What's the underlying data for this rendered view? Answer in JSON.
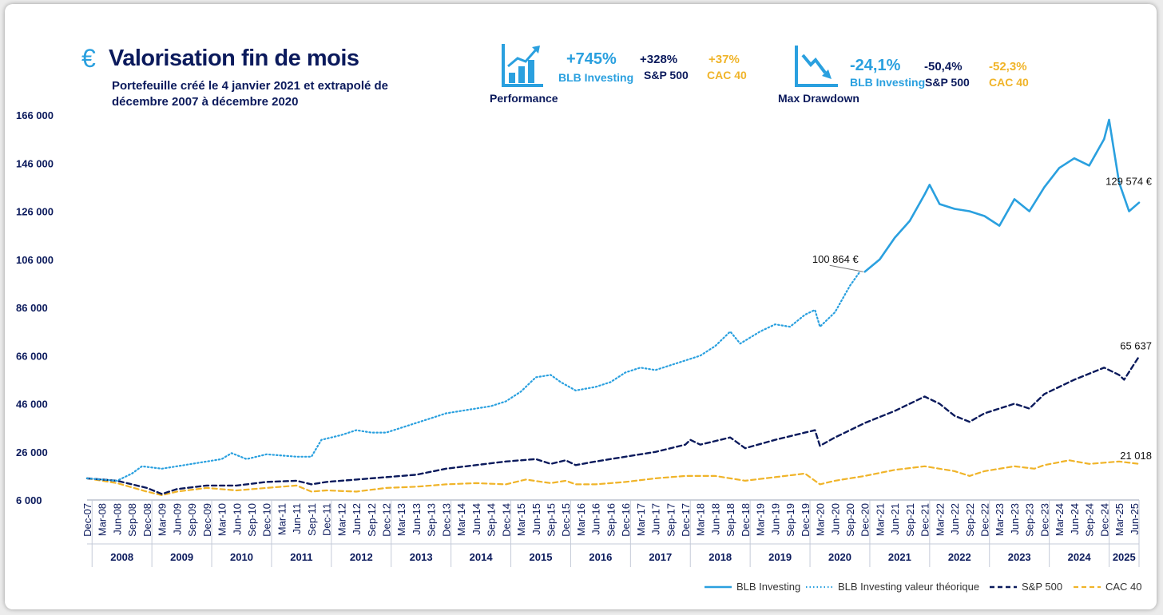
{
  "header": {
    "icon": "euro-icon",
    "title": "Valorisation fin de mois",
    "subtitle": "Portefeuille créé le 4 janvier 2021 et extrapolé de décembre 2007 à décembre 2020"
  },
  "kpis": {
    "performance": {
      "icon": "growth-chart-icon",
      "label": "Performance",
      "blb_value": "+745%",
      "blb_label": "BLB Investing",
      "sp_value": "+328%",
      "sp_label": "S&P 500",
      "cac_value": "+37%",
      "cac_label": "CAC 40"
    },
    "drawdown": {
      "icon": "decline-chart-icon",
      "label": "Max Drawdown",
      "blb_value": "-24,1%",
      "blb_label": "BLB Investing",
      "sp_value": "-50,4%",
      "sp_label": "S&P 500",
      "cac_value": "-52,3%",
      "cac_label": "CAC 40"
    }
  },
  "colors": {
    "blb": "#2aa0df",
    "sp": "#0b1a5c",
    "cac": "#f0b429"
  },
  "chart_data": {
    "type": "line",
    "ylim": [
      6000,
      166000
    ],
    "yticks": [
      "166 000",
      "146 000",
      "126 000",
      "106 000",
      "86 000",
      "66 000",
      "46 000",
      "26 000",
      "6 000"
    ],
    "x_ticks": [
      "Dec-07",
      "Mar-08",
      "Jun-08",
      "Sep-08",
      "Dec-08",
      "Mar-09",
      "Jun-09",
      "Sep-09",
      "Dec-09",
      "Mar-10",
      "Jun-10",
      "Sep-10",
      "Dec-10",
      "Mar-11",
      "Jun-11",
      "Sep-11",
      "Dec-11",
      "Mar-12",
      "Jun-12",
      "Sep-12",
      "Dec-12",
      "Mar-13",
      "Jun-13",
      "Sep-13",
      "Dec-13",
      "Mar-14",
      "Jun-14",
      "Sep-14",
      "Dec-14",
      "Mar-15",
      "Jun-15",
      "Sep-15",
      "Dec-15",
      "Mar-16",
      "Jun-16",
      "Sep-16",
      "Dec-16",
      "Mar-17",
      "Jun-17",
      "Sep-17",
      "Dec-17",
      "Mar-18",
      "Jun-18",
      "Sep-18",
      "Dec-18",
      "Mar-19",
      "Jun-19",
      "Sep-19",
      "Dec-19",
      "Mar-20",
      "Jun-20",
      "Sep-20",
      "Dec-20",
      "Mar-21",
      "Jun-21",
      "Sep-21",
      "Dec-21",
      "Mar-22",
      "Jun-22",
      "Sep-22",
      "Dec-22",
      "Mar-23",
      "Jun-23",
      "Sep-23",
      "Dec-23",
      "Mar-24",
      "Jun-24",
      "Sep-24",
      "Dec-24",
      "Mar-25",
      "Jun-25"
    ],
    "years": [
      "2008",
      "2009",
      "2010",
      "2011",
      "2012",
      "2013",
      "2014",
      "2015",
      "2016",
      "2017",
      "2018",
      "2019",
      "2020",
      "2021",
      "2022",
      "2023",
      "2024",
      "2025"
    ],
    "series": [
      {
        "name": "BLB Investing valeur théorique",
        "style": "dotted",
        "points": [
          [
            "2007-12",
            15000
          ],
          [
            "2008-06",
            14000
          ],
          [
            "2008-09",
            17000
          ],
          [
            "2008-11",
            20000
          ],
          [
            "2009-03",
            19000
          ],
          [
            "2009-06",
            20000
          ],
          [
            "2009-12",
            22000
          ],
          [
            "2010-03",
            23000
          ],
          [
            "2010-05",
            25500
          ],
          [
            "2010-08",
            23000
          ],
          [
            "2010-12",
            25000
          ],
          [
            "2011-06",
            24000
          ],
          [
            "2011-09",
            24000
          ],
          [
            "2011-11",
            31000
          ],
          [
            "2012-03",
            33000
          ],
          [
            "2012-06",
            35000
          ],
          [
            "2012-09",
            34000
          ],
          [
            "2012-12",
            34000
          ],
          [
            "2013-03",
            36000
          ],
          [
            "2013-06",
            38000
          ],
          [
            "2013-09",
            40000
          ],
          [
            "2013-12",
            42000
          ],
          [
            "2014-03",
            43000
          ],
          [
            "2014-09",
            45000
          ],
          [
            "2014-12",
            47000
          ],
          [
            "2015-03",
            51000
          ],
          [
            "2015-06",
            57000
          ],
          [
            "2015-09",
            58000
          ],
          [
            "2015-11",
            55000
          ],
          [
            "2016-02",
            51500
          ],
          [
            "2016-06",
            53000
          ],
          [
            "2016-09",
            55000
          ],
          [
            "2016-12",
            59000
          ],
          [
            "2017-03",
            61000
          ],
          [
            "2017-06",
            60000
          ],
          [
            "2017-09",
            62000
          ],
          [
            "2017-12",
            64000
          ],
          [
            "2018-03",
            66000
          ],
          [
            "2018-06",
            70000
          ],
          [
            "2018-09",
            76000
          ],
          [
            "2018-11",
            71000
          ],
          [
            "2019-03",
            76000
          ],
          [
            "2019-06",
            79000
          ],
          [
            "2019-09",
            78000
          ],
          [
            "2019-12",
            83000
          ],
          [
            "2020-02",
            85000
          ],
          [
            "2020-03",
            78000
          ],
          [
            "2020-06",
            84000
          ],
          [
            "2020-09",
            95000
          ],
          [
            "2020-11",
            100864
          ]
        ]
      },
      {
        "name": "BLB Investing",
        "style": "solid",
        "points": [
          [
            "2020-12",
            100864
          ],
          [
            "2021-03",
            106000
          ],
          [
            "2021-06",
            115000
          ],
          [
            "2021-09",
            122000
          ],
          [
            "2021-12",
            133000
          ],
          [
            "2022-01",
            137000
          ],
          [
            "2022-03",
            129000
          ],
          [
            "2022-06",
            127000
          ],
          [
            "2022-09",
            126000
          ],
          [
            "2022-12",
            124000
          ],
          [
            "2023-03",
            120000
          ],
          [
            "2023-06",
            131000
          ],
          [
            "2023-09",
            126000
          ],
          [
            "2023-12",
            136000
          ],
          [
            "2024-03",
            144000
          ],
          [
            "2024-06",
            148000
          ],
          [
            "2024-09",
            145000
          ],
          [
            "2024-12",
            156000
          ],
          [
            "2025-01",
            164000
          ],
          [
            "2025-03",
            138000
          ],
          [
            "2025-05",
            126000
          ],
          [
            "2025-07",
            129574
          ]
        ]
      },
      {
        "name": "S&P 500",
        "style": "dashed",
        "points": [
          [
            "2007-12",
            15000
          ],
          [
            "2008-06",
            14000
          ],
          [
            "2008-12",
            11000
          ],
          [
            "2009-03",
            8500
          ],
          [
            "2009-06",
            10500
          ],
          [
            "2009-12",
            12000
          ],
          [
            "2010-06",
            12000
          ],
          [
            "2010-12",
            13500
          ],
          [
            "2011-06",
            14000
          ],
          [
            "2011-09",
            12500
          ],
          [
            "2011-12",
            13500
          ],
          [
            "2012-06",
            14500
          ],
          [
            "2012-12",
            15500
          ],
          [
            "2013-06",
            16500
          ],
          [
            "2013-12",
            19000
          ],
          [
            "2014-06",
            20500
          ],
          [
            "2014-12",
            22000
          ],
          [
            "2015-06",
            23000
          ],
          [
            "2015-09",
            21000
          ],
          [
            "2015-12",
            22500
          ],
          [
            "2016-02",
            20500
          ],
          [
            "2016-06",
            22000
          ],
          [
            "2016-12",
            24000
          ],
          [
            "2017-06",
            26000
          ],
          [
            "2017-12",
            29000
          ],
          [
            "2018-01",
            31000
          ],
          [
            "2018-03",
            29000
          ],
          [
            "2018-09",
            32000
          ],
          [
            "2018-12",
            27500
          ],
          [
            "2019-06",
            31000
          ],
          [
            "2019-12",
            34000
          ],
          [
            "2020-02",
            35000
          ],
          [
            "2020-03",
            28500
          ],
          [
            "2020-06",
            32000
          ],
          [
            "2020-12",
            38000
          ],
          [
            "2021-06",
            43000
          ],
          [
            "2021-12",
            49000
          ],
          [
            "2022-03",
            46000
          ],
          [
            "2022-06",
            41000
          ],
          [
            "2022-09",
            38500
          ],
          [
            "2022-12",
            42000
          ],
          [
            "2023-06",
            46000
          ],
          [
            "2023-09",
            44000
          ],
          [
            "2023-12",
            50000
          ],
          [
            "2024-06",
            56000
          ],
          [
            "2024-12",
            61000
          ],
          [
            "2025-03",
            58000
          ],
          [
            "2025-04",
            56000
          ],
          [
            "2025-07",
            65637
          ]
        ]
      },
      {
        "name": "CAC 40",
        "style": "dashed",
        "points": [
          [
            "2007-12",
            15000
          ],
          [
            "2008-06",
            13000
          ],
          [
            "2008-12",
            9500
          ],
          [
            "2009-03",
            8000
          ],
          [
            "2009-06",
            9500
          ],
          [
            "2009-12",
            11000
          ],
          [
            "2010-06",
            10000
          ],
          [
            "2010-12",
            11000
          ],
          [
            "2011-06",
            12000
          ],
          [
            "2011-09",
            9500
          ],
          [
            "2011-12",
            10000
          ],
          [
            "2012-06",
            9500
          ],
          [
            "2012-12",
            11000
          ],
          [
            "2013-06",
            11500
          ],
          [
            "2013-12",
            12500
          ],
          [
            "2014-06",
            13000
          ],
          [
            "2014-12",
            12500
          ],
          [
            "2015-04",
            14500
          ],
          [
            "2015-09",
            13000
          ],
          [
            "2015-12",
            14000
          ],
          [
            "2016-02",
            12500
          ],
          [
            "2016-06",
            12500
          ],
          [
            "2016-12",
            13500
          ],
          [
            "2017-06",
            15000
          ],
          [
            "2017-12",
            16000
          ],
          [
            "2018-06",
            16000
          ],
          [
            "2018-12",
            14000
          ],
          [
            "2019-06",
            15500
          ],
          [
            "2019-12",
            17000
          ],
          [
            "2020-03",
            12500
          ],
          [
            "2020-06",
            14000
          ],
          [
            "2020-12",
            16000
          ],
          [
            "2021-06",
            18500
          ],
          [
            "2021-12",
            20000
          ],
          [
            "2022-06",
            18000
          ],
          [
            "2022-09",
            16000
          ],
          [
            "2022-12",
            18000
          ],
          [
            "2023-06",
            20000
          ],
          [
            "2023-10",
            19000
          ],
          [
            "2023-12",
            20500
          ],
          [
            "2024-05",
            22500
          ],
          [
            "2024-09",
            21000
          ],
          [
            "2024-12",
            21500
          ],
          [
            "2025-03",
            22000
          ],
          [
            "2025-07",
            21018
          ]
        ]
      }
    ],
    "annotations": [
      {
        "label": "100 864 €",
        "series": "BLB Investing",
        "date": "2020-12",
        "value": 100864
      },
      {
        "label": "129 574 €",
        "series": "BLB Investing",
        "date": "2025-07",
        "value": 129574
      },
      {
        "label": "65 637",
        "series": "S&P 500",
        "date": "2025-07",
        "value": 65637
      },
      {
        "label": "21 018",
        "series": "CAC 40",
        "date": "2025-07",
        "value": 21018
      }
    ],
    "legend": {
      "position": "bottom-right",
      "entries": [
        "BLB Investing",
        "BLB Investing valeur théorique",
        "S&P 500",
        "CAC 40"
      ]
    }
  }
}
